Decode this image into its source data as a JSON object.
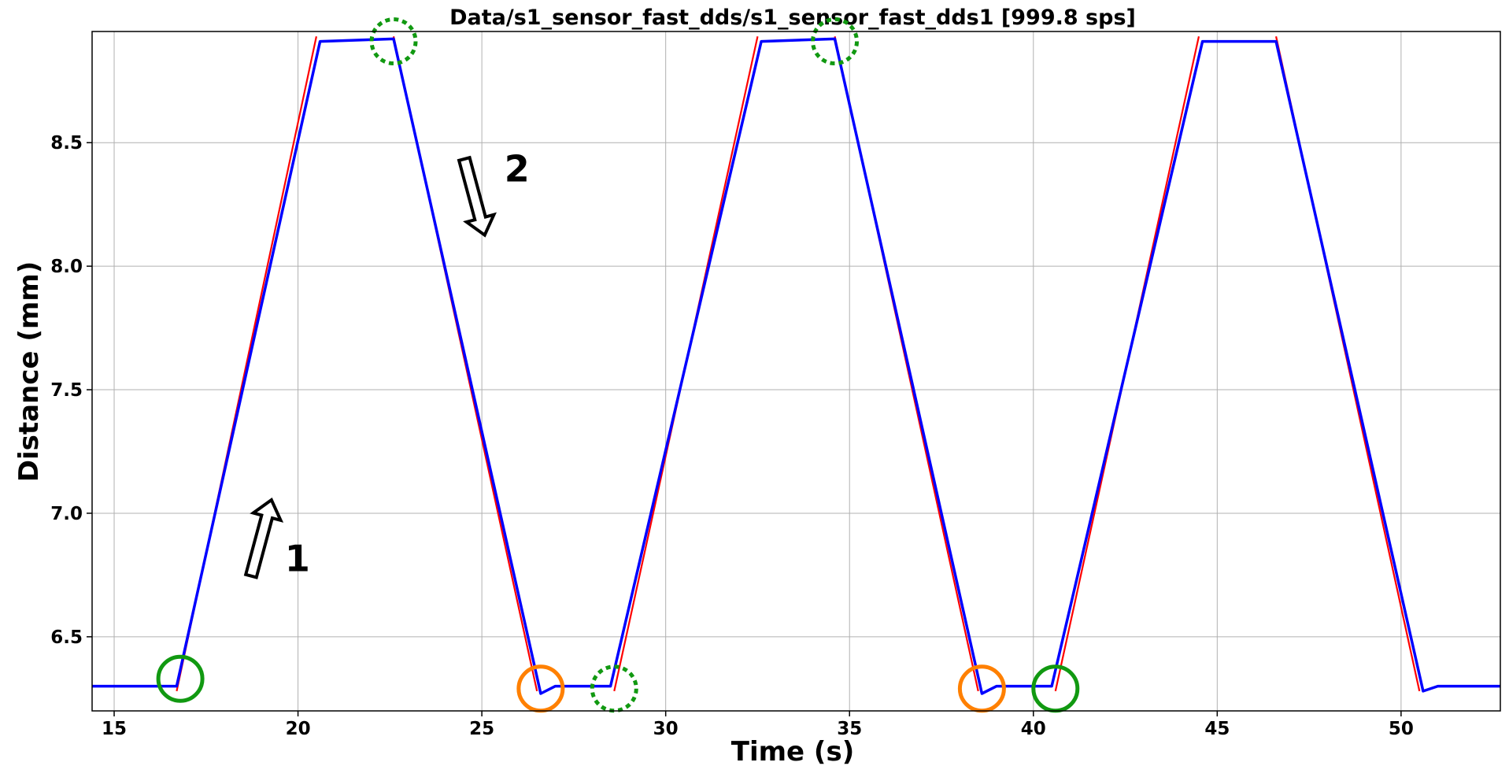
{
  "chart_data": {
    "type": "line",
    "title": "Data/s1_sensor_fast_dds/s1_sensor_fast_dds1 [999.8 sps]",
    "xlabel": "Time (s)",
    "ylabel": "Distance (mm)",
    "xlim": [
      14.4,
      52.7
    ],
    "ylim": [
      6.2,
      8.95
    ],
    "xticks": [
      15,
      20,
      25,
      30,
      35,
      40,
      45,
      50
    ],
    "yticks": [
      6.5,
      7.0,
      7.5,
      8.0,
      8.5
    ],
    "xtick_labels": [
      "15",
      "20",
      "25",
      "30",
      "35",
      "40",
      "45",
      "50"
    ],
    "ytick_labels": [
      "6.5",
      "7.0",
      "7.5",
      "8.0",
      "8.5"
    ],
    "grid": true,
    "legend": "none",
    "colors": {
      "measured": "#0000ff",
      "fit": "#ff0000",
      "green_marker": "#119911",
      "orange_marker": "#ff8000",
      "arrow_fill": "#ffffff",
      "arrow_stroke": "#000000"
    },
    "series": [
      {
        "style": "blue-thick",
        "x": [
          14.4,
          16.7,
          20.6,
          22.6,
          26.6,
          27.0,
          28.5,
          32.6,
          34.6,
          38.6,
          39.0,
          40.5,
          44.6,
          46.6,
          50.6,
          51.0,
          52.7
        ],
        "y": [
          6.3,
          6.3,
          8.91,
          8.92,
          6.27,
          6.3,
          6.3,
          8.91,
          8.92,
          6.27,
          6.3,
          6.3,
          8.91,
          8.91,
          6.28,
          6.3,
          6.3
        ]
      },
      {
        "style": "red-fit",
        "segments": [
          {
            "x": [
              16.7,
              20.5
            ],
            "y": [
              6.28,
              8.93
            ]
          },
          {
            "x": [
              22.6,
              26.5
            ],
            "y": [
              8.93,
              6.28
            ]
          },
          {
            "x": [
              28.6,
              32.5
            ],
            "y": [
              6.28,
              8.93
            ]
          },
          {
            "x": [
              34.6,
              38.5
            ],
            "y": [
              8.93,
              6.28
            ]
          },
          {
            "x": [
              40.6,
              44.5
            ],
            "y": [
              6.28,
              8.93
            ]
          },
          {
            "x": [
              46.6,
              50.5
            ],
            "y": [
              8.93,
              6.28
            ]
          }
        ]
      }
    ],
    "markers": [
      {
        "x": 16.8,
        "y": 6.33,
        "color": "green",
        "style": "solid"
      },
      {
        "x": 22.6,
        "y": 8.91,
        "color": "green",
        "style": "dotted"
      },
      {
        "x": 26.6,
        "y": 6.29,
        "color": "orange",
        "style": "solid"
      },
      {
        "x": 28.6,
        "y": 6.29,
        "color": "green",
        "style": "dotted"
      },
      {
        "x": 34.6,
        "y": 8.91,
        "color": "green",
        "style": "dotted"
      },
      {
        "x": 38.6,
        "y": 6.29,
        "color": "orange",
        "style": "solid"
      },
      {
        "x": 40.6,
        "y": 6.29,
        "color": "green",
        "style": "solid"
      }
    ],
    "annotations": [
      {
        "text": "1",
        "direction": "up",
        "at_x": 19.0,
        "at_y": 6.9
      },
      {
        "text": "2",
        "direction": "down",
        "at_x": 24.8,
        "at_y": 8.28
      }
    ]
  }
}
